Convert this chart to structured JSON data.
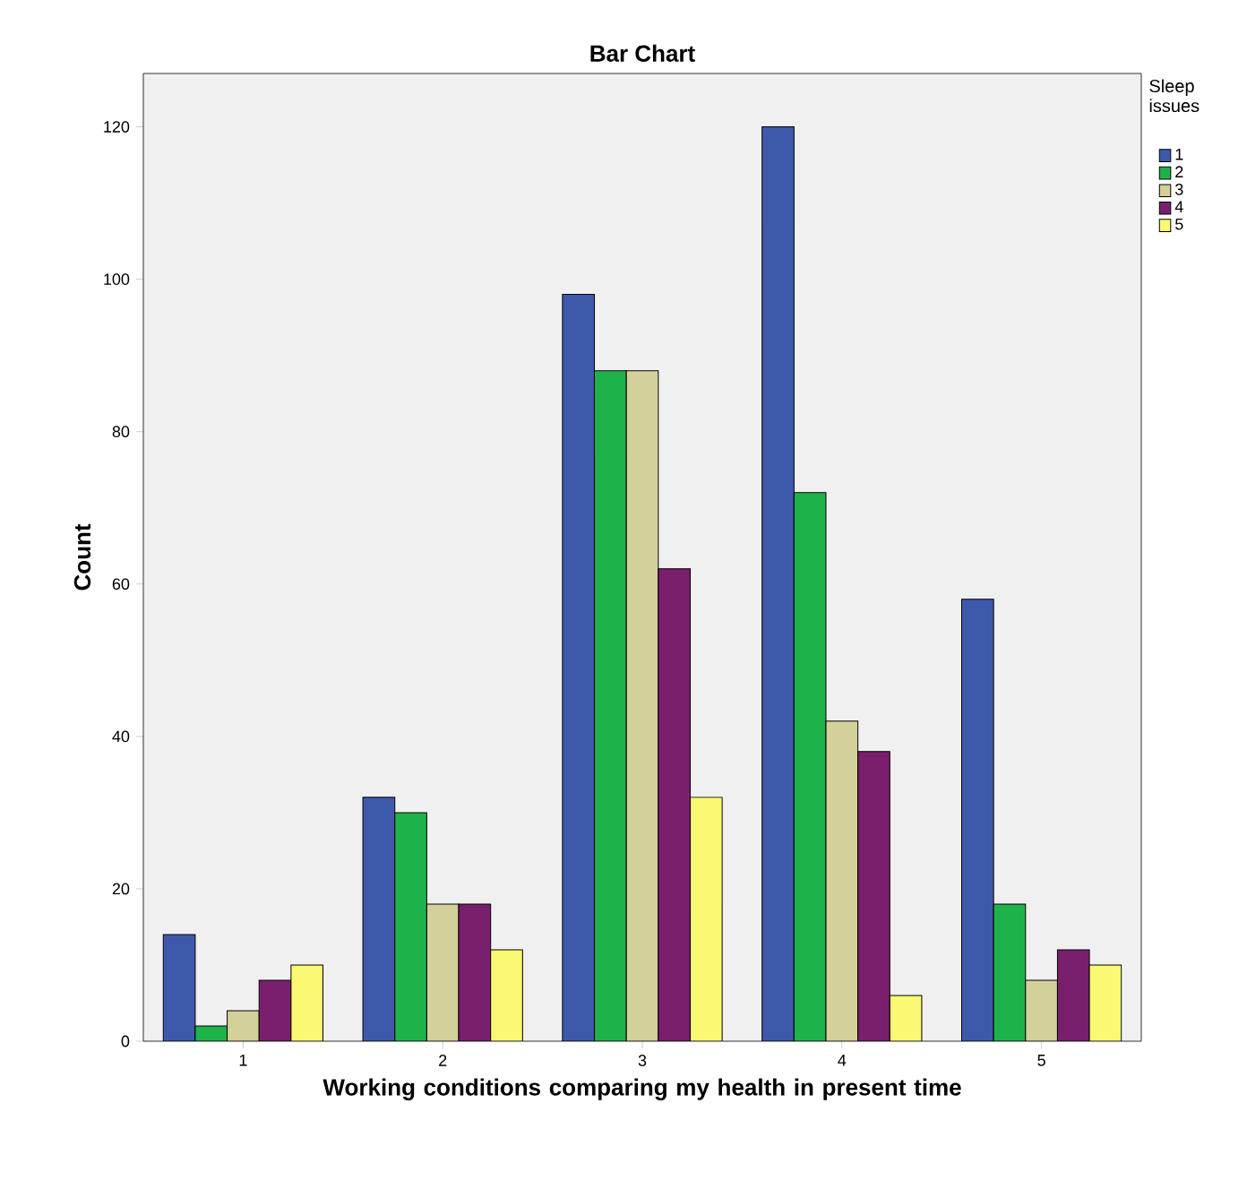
{
  "chart_data": {
    "type": "bar",
    "title": "Bar Chart",
    "xlabel": "Working conditions comparing my health in present time",
    "ylabel": "Count",
    "legend_title": "Sleep issues",
    "categories": [
      "1",
      "2",
      "3",
      "4",
      "5"
    ],
    "series": [
      {
        "name": "1",
        "color": "#3e58ac",
        "values": [
          14,
          32,
          98,
          120,
          58
        ]
      },
      {
        "name": "2",
        "color": "#1eb34a",
        "values": [
          2,
          30,
          88,
          72,
          18
        ]
      },
      {
        "name": "3",
        "color": "#d4d09a",
        "values": [
          4,
          18,
          88,
          42,
          8
        ]
      },
      {
        "name": "4",
        "color": "#7a1f6e",
        "values": [
          8,
          18,
          62,
          38,
          12
        ]
      },
      {
        "name": "5",
        "color": "#fbf873",
        "values": [
          10,
          12,
          32,
          6,
          10
        ]
      }
    ],
    "ylim": [
      0,
      127
    ],
    "yticks": [
      0,
      20,
      40,
      60,
      80,
      100,
      120
    ],
    "grid": false,
    "legend": "top right"
  }
}
